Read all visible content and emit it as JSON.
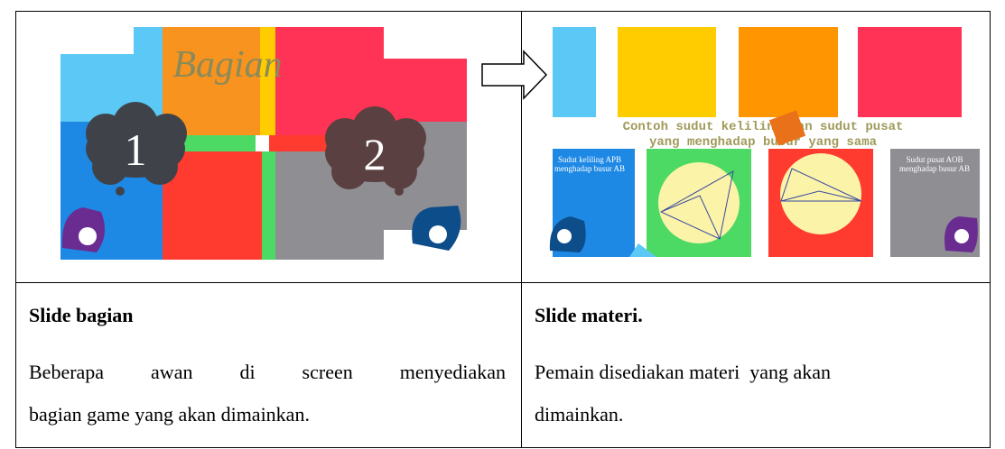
{
  "cells": [
    {
      "image": {
        "title": "Bagian",
        "clouds": [
          "1",
          "2"
        ]
      },
      "heading": "Slide bagian",
      "lines": [
        "Beberapa awan    di screen menyediakan",
        "bagian game yang akan dimainkan."
      ]
    },
    {
      "image": {
        "title_lines": [
          "Contoh sudut keliling dan sudut pusat",
          "yang menghadap busur yang sama"
        ],
        "left_note": "Sudut keliling APB menghadap busur AB",
        "right_note": "Sudut pusat AOB menghadap busur AB"
      },
      "heading": "Slide materi.",
      "lines": [
        "Pemain disediakan materi  yang akan",
        "dimainkan."
      ]
    }
  ]
}
